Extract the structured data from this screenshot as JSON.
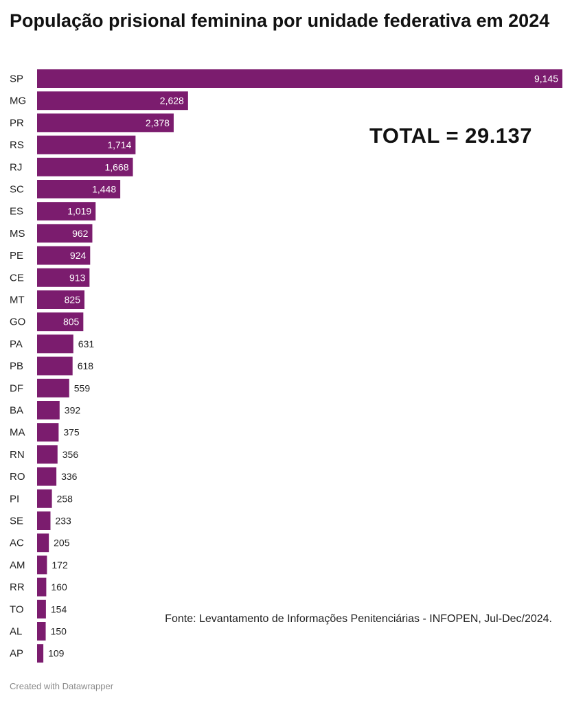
{
  "title": "População prisional feminina por unidade federativa em 2024",
  "annotation": "TOTAL = 29.137",
  "source": "Fonte: Levantamento de Informações Penitenciárias - INFOPEN, Jul-Dec/2024.",
  "credit": "Created with Datawrapper",
  "colors": {
    "bar": "#7b1c6e"
  },
  "chart_data": {
    "type": "bar",
    "orientation": "horizontal",
    "categories": [
      "SP",
      "MG",
      "PR",
      "RS",
      "RJ",
      "SC",
      "ES",
      "MS",
      "PE",
      "CE",
      "MT",
      "GO",
      "PA",
      "PB",
      "DF",
      "BA",
      "MA",
      "RN",
      "RO",
      "PI",
      "SE",
      "AC",
      "AM",
      "RR",
      "TO",
      "AL",
      "AP"
    ],
    "values": [
      9145,
      2628,
      2378,
      1714,
      1668,
      1448,
      1019,
      962,
      924,
      913,
      825,
      805,
      631,
      618,
      559,
      392,
      375,
      356,
      336,
      258,
      233,
      205,
      172,
      160,
      154,
      150,
      109
    ],
    "value_labels": [
      "9,145",
      "2,628",
      "2,378",
      "1,714",
      "1,668",
      "1,448",
      "1,019",
      "962",
      "924",
      "913",
      "825",
      "805",
      "631",
      "618",
      "559",
      "392",
      "375",
      "356",
      "336",
      "258",
      "233",
      "205",
      "172",
      "160",
      "154",
      "150",
      "109"
    ],
    "xlim": [
      0,
      9145
    ],
    "grid": false,
    "legend": "none"
  }
}
